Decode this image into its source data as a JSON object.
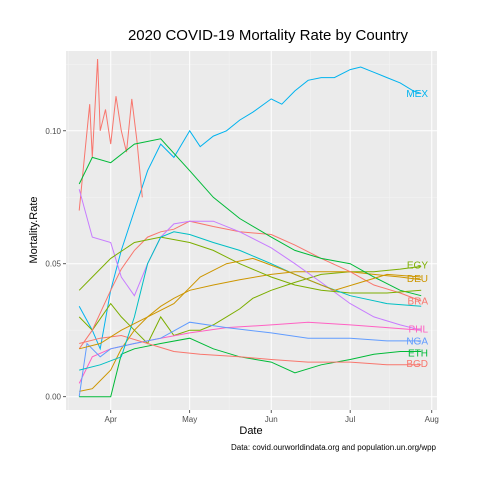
{
  "chart_data": {
    "type": "line",
    "title": "2020 COVID-19 Mortality Rate by Country",
    "xlabel": "Date",
    "ylabel": "Mortality.Rate",
    "caption": "Data: covid.ourworldindata.org and population.un.org/wpp",
    "x_ticks": [
      "Apr",
      "May",
      "Jun",
      "Jul",
      "Aug"
    ],
    "y_ticks": [
      "0.00",
      "0.05",
      "0.10"
    ],
    "xlim": [
      "2020-03-15",
      "2020-08-03"
    ],
    "ylim": [
      -0.005,
      0.13
    ],
    "grid": true,
    "panel_background": "#ebebeb",
    "legend": "none",
    "series": [
      {
        "name": "MEX",
        "color": "#00b3ef",
        "points": [
          [
            "2020-03-20",
            0.034
          ],
          [
            "2020-03-25",
            0.025
          ],
          [
            "2020-03-28",
            0.018
          ],
          [
            "2020-04-01",
            0.04
          ],
          [
            "2020-04-05",
            0.055
          ],
          [
            "2020-04-10",
            0.07
          ],
          [
            "2020-04-15",
            0.085
          ],
          [
            "2020-04-20",
            0.095
          ],
          [
            "2020-04-25",
            0.09
          ],
          [
            "2020-05-01",
            0.1
          ],
          [
            "2020-05-05",
            0.094
          ],
          [
            "2020-05-10",
            0.098
          ],
          [
            "2020-05-15",
            0.1
          ],
          [
            "2020-05-20",
            0.104
          ],
          [
            "2020-05-25",
            0.107
          ],
          [
            "2020-06-01",
            0.112
          ],
          [
            "2020-06-05",
            0.11
          ],
          [
            "2020-06-10",
            0.115
          ],
          [
            "2020-06-15",
            0.119
          ],
          [
            "2020-06-20",
            0.12
          ],
          [
            "2020-06-25",
            0.12
          ],
          [
            "2020-07-01",
            0.123
          ],
          [
            "2020-07-05",
            0.124
          ],
          [
            "2020-07-10",
            0.122
          ],
          [
            "2020-07-15",
            0.12
          ],
          [
            "2020-07-20",
            0.118
          ],
          [
            "2020-07-25",
            0.115
          ],
          [
            "2020-07-28",
            0.114
          ]
        ]
      },
      {
        "name": "EGY",
        "color": "#7cae00",
        "points": [
          [
            "2020-03-20",
            0.03
          ],
          [
            "2020-03-25",
            0.025
          ],
          [
            "2020-04-01",
            0.035
          ],
          [
            "2020-04-05",
            0.03
          ],
          [
            "2020-04-10",
            0.025
          ],
          [
            "2020-04-15",
            0.02
          ],
          [
            "2020-04-20",
            0.03
          ],
          [
            "2020-04-25",
            0.023
          ],
          [
            "2020-05-01",
            0.025
          ],
          [
            "2020-05-05",
            0.025
          ],
          [
            "2020-05-10",
            0.027
          ],
          [
            "2020-05-15",
            0.03
          ],
          [
            "2020-05-20",
            0.033
          ],
          [
            "2020-05-25",
            0.037
          ],
          [
            "2020-06-01",
            0.04
          ],
          [
            "2020-06-10",
            0.043
          ],
          [
            "2020-06-20",
            0.046
          ],
          [
            "2020-07-01",
            0.047
          ],
          [
            "2020-07-10",
            0.047
          ],
          [
            "2020-07-20",
            0.048
          ],
          [
            "2020-07-28",
            0.049
          ]
        ]
      },
      {
        "name": "DEU",
        "color": "#cd9600",
        "points": [
          [
            "2020-03-20",
            0.002
          ],
          [
            "2020-03-25",
            0.003
          ],
          [
            "2020-04-01",
            0.01
          ],
          [
            "2020-04-05",
            0.018
          ],
          [
            "2020-04-10",
            0.025
          ],
          [
            "2020-04-15",
            0.03
          ],
          [
            "2020-04-20",
            0.034
          ],
          [
            "2020-04-25",
            0.037
          ],
          [
            "2020-05-01",
            0.04
          ],
          [
            "2020-05-10",
            0.042
          ],
          [
            "2020-05-20",
            0.044
          ],
          [
            "2020-06-01",
            0.046
          ],
          [
            "2020-06-10",
            0.047
          ],
          [
            "2020-06-20",
            0.047
          ],
          [
            "2020-07-01",
            0.047
          ],
          [
            "2020-07-10",
            0.046
          ],
          [
            "2020-07-20",
            0.045
          ],
          [
            "2020-07-28",
            0.044
          ]
        ]
      },
      {
        "name": "BRA",
        "color": "#f8766d",
        "points": [
          [
            "2020-03-20",
            0.018
          ],
          [
            "2020-03-25",
            0.025
          ],
          [
            "2020-04-01",
            0.04
          ],
          [
            "2020-04-05",
            0.048
          ],
          [
            "2020-04-10",
            0.055
          ],
          [
            "2020-04-15",
            0.06
          ],
          [
            "2020-04-20",
            0.062
          ],
          [
            "2020-04-25",
            0.063
          ],
          [
            "2020-05-01",
            0.066
          ],
          [
            "2020-05-10",
            0.064
          ],
          [
            "2020-05-20",
            0.062
          ],
          [
            "2020-06-01",
            0.061
          ],
          [
            "2020-06-10",
            0.057
          ],
          [
            "2020-06-20",
            0.052
          ],
          [
            "2020-07-01",
            0.047
          ],
          [
            "2020-07-10",
            0.042
          ],
          [
            "2020-07-20",
            0.039
          ],
          [
            "2020-07-28",
            0.036
          ]
        ]
      },
      {
        "name": "PHL",
        "color": "#ff61c3",
        "points": [
          [
            "2020-03-20",
            0.005
          ],
          [
            "2020-03-25",
            0.015
          ],
          [
            "2020-04-01",
            0.018
          ],
          [
            "2020-04-10",
            0.02
          ],
          [
            "2020-04-20",
            0.022
          ],
          [
            "2020-05-01",
            0.024
          ],
          [
            "2020-05-15",
            0.026
          ],
          [
            "2020-06-01",
            0.027
          ],
          [
            "2020-06-15",
            0.028
          ],
          [
            "2020-07-01",
            0.027
          ],
          [
            "2020-07-15",
            0.026
          ],
          [
            "2020-07-28",
            0.025
          ]
        ]
      },
      {
        "name": "NGA",
        "color": "#619cff",
        "points": [
          [
            "2020-03-20",
            0.0
          ],
          [
            "2020-03-23",
            0.02
          ],
          [
            "2020-03-28",
            0.015
          ],
          [
            "2020-04-01",
            0.018
          ],
          [
            "2020-04-10",
            0.02
          ],
          [
            "2020-04-20",
            0.022
          ],
          [
            "2020-05-01",
            0.028
          ],
          [
            "2020-05-15",
            0.026
          ],
          [
            "2020-06-01",
            0.024
          ],
          [
            "2020-06-15",
            0.022
          ],
          [
            "2020-07-01",
            0.022
          ],
          [
            "2020-07-15",
            0.021
          ],
          [
            "2020-07-28",
            0.021
          ]
        ]
      },
      {
        "name": "ETH",
        "color": "#00ba38",
        "points": [
          [
            "2020-03-20",
            0.0
          ],
          [
            "2020-04-01",
            0.0
          ],
          [
            "2020-04-05",
            0.016
          ],
          [
            "2020-04-10",
            0.018
          ],
          [
            "2020-04-20",
            0.02
          ],
          [
            "2020-05-01",
            0.022
          ],
          [
            "2020-05-10",
            0.018
          ],
          [
            "2020-05-20",
            0.015
          ],
          [
            "2020-06-01",
            0.013
          ],
          [
            "2020-06-10",
            0.009
          ],
          [
            "2020-06-20",
            0.012
          ],
          [
            "2020-07-01",
            0.014
          ],
          [
            "2020-07-10",
            0.016
          ],
          [
            "2020-07-20",
            0.017
          ],
          [
            "2020-07-28",
            0.017
          ]
        ]
      },
      {
        "name": "BGD",
        "color": "#f8766d",
        "points": [
          [
            "2020-03-20",
            0.02
          ],
          [
            "2020-03-28",
            0.022
          ],
          [
            "2020-04-05",
            0.023
          ],
          [
            "2020-04-15",
            0.02
          ],
          [
            "2020-04-25",
            0.017
          ],
          [
            "2020-05-05",
            0.016
          ],
          [
            "2020-05-20",
            0.015
          ],
          [
            "2020-06-01",
            0.014
          ],
          [
            "2020-06-15",
            0.013
          ],
          [
            "2020-07-01",
            0.013
          ],
          [
            "2020-07-15",
            0.012
          ],
          [
            "2020-07-28",
            0.012
          ]
        ]
      },
      {
        "name": "",
        "color": "#f8766d",
        "points": [
          [
            "2020-03-20",
            0.07
          ],
          [
            "2020-03-22",
            0.09
          ],
          [
            "2020-03-24",
            0.11
          ],
          [
            "2020-03-25",
            0.09
          ],
          [
            "2020-03-27",
            0.127
          ],
          [
            "2020-03-28",
            0.1
          ],
          [
            "2020-03-30",
            0.108
          ],
          [
            "2020-04-01",
            0.095
          ],
          [
            "2020-04-03",
            0.113
          ],
          [
            "2020-04-05",
            0.1
          ],
          [
            "2020-04-07",
            0.092
          ],
          [
            "2020-04-09",
            0.112
          ],
          [
            "2020-04-11",
            0.096
          ],
          [
            "2020-04-13",
            0.075
          ]
        ]
      },
      {
        "name": "",
        "color": "#00ba38",
        "points": [
          [
            "2020-03-20",
            0.08
          ],
          [
            "2020-03-25",
            0.09
          ],
          [
            "2020-04-01",
            0.088
          ],
          [
            "2020-04-10",
            0.095
          ],
          [
            "2020-04-20",
            0.097
          ],
          [
            "2020-05-01",
            0.085
          ],
          [
            "2020-05-10",
            0.075
          ],
          [
            "2020-05-20",
            0.067
          ],
          [
            "2020-06-01",
            0.06
          ],
          [
            "2020-06-10",
            0.055
          ],
          [
            "2020-06-20",
            0.052
          ],
          [
            "2020-07-01",
            0.05
          ],
          [
            "2020-07-10",
            0.045
          ],
          [
            "2020-07-20",
            0.04
          ],
          [
            "2020-07-28",
            0.038
          ]
        ]
      },
      {
        "name": "",
        "color": "#c77cff",
        "points": [
          [
            "2020-03-20",
            0.078
          ],
          [
            "2020-03-25",
            0.06
          ],
          [
            "2020-04-01",
            0.058
          ],
          [
            "2020-04-05",
            0.045
          ],
          [
            "2020-04-10",
            0.038
          ],
          [
            "2020-04-15",
            0.05
          ],
          [
            "2020-04-20",
            0.06
          ],
          [
            "2020-04-25",
            0.065
          ],
          [
            "2020-05-01",
            0.066
          ],
          [
            "2020-05-10",
            0.066
          ],
          [
            "2020-05-20",
            0.062
          ],
          [
            "2020-06-01",
            0.056
          ],
          [
            "2020-06-10",
            0.05
          ],
          [
            "2020-06-20",
            0.043
          ],
          [
            "2020-07-01",
            0.035
          ],
          [
            "2020-07-10",
            0.03
          ],
          [
            "2020-07-20",
            0.027
          ],
          [
            "2020-07-28",
            0.025
          ]
        ]
      },
      {
        "name": "",
        "color": "#7cae00",
        "points": [
          [
            "2020-03-20",
            0.04
          ],
          [
            "2020-03-25",
            0.045
          ],
          [
            "2020-04-01",
            0.052
          ],
          [
            "2020-04-10",
            0.058
          ],
          [
            "2020-04-20",
            0.06
          ],
          [
            "2020-05-01",
            0.058
          ],
          [
            "2020-05-10",
            0.055
          ],
          [
            "2020-05-20",
            0.05
          ],
          [
            "2020-06-01",
            0.045
          ],
          [
            "2020-06-10",
            0.042
          ],
          [
            "2020-06-20",
            0.04
          ],
          [
            "2020-07-01",
            0.039
          ],
          [
            "2020-07-15",
            0.039
          ],
          [
            "2020-07-28",
            0.04
          ]
        ]
      },
      {
        "name": "",
        "color": "#00bfc4",
        "points": [
          [
            "2020-03-20",
            0.01
          ],
          [
            "2020-03-28",
            0.012
          ],
          [
            "2020-04-05",
            0.015
          ],
          [
            "2020-04-10",
            0.03
          ],
          [
            "2020-04-15",
            0.05
          ],
          [
            "2020-04-20",
            0.06
          ],
          [
            "2020-04-25",
            0.062
          ],
          [
            "2020-05-01",
            0.061
          ],
          [
            "2020-05-10",
            0.058
          ],
          [
            "2020-05-20",
            0.055
          ],
          [
            "2020-06-01",
            0.05
          ],
          [
            "2020-06-10",
            0.046
          ],
          [
            "2020-06-20",
            0.042
          ],
          [
            "2020-07-01",
            0.038
          ],
          [
            "2020-07-15",
            0.035
          ],
          [
            "2020-07-28",
            0.034
          ]
        ]
      },
      {
        "name": "",
        "color": "#cd9600",
        "points": [
          [
            "2020-03-20",
            0.018
          ],
          [
            "2020-03-28",
            0.02
          ],
          [
            "2020-04-05",
            0.025
          ],
          [
            "2020-04-15",
            0.03
          ],
          [
            "2020-04-25",
            0.035
          ],
          [
            "2020-05-05",
            0.045
          ],
          [
            "2020-05-15",
            0.05
          ],
          [
            "2020-05-25",
            0.052
          ],
          [
            "2020-06-05",
            0.048
          ],
          [
            "2020-06-15",
            0.044
          ],
          [
            "2020-06-25",
            0.04
          ],
          [
            "2020-07-05",
            0.043
          ],
          [
            "2020-07-15",
            0.046
          ],
          [
            "2020-07-28",
            0.045
          ]
        ]
      }
    ],
    "end_labels": [
      {
        "name": "MEX",
        "color": "#00b3ef",
        "y": 0.114
      },
      {
        "name": "EGY",
        "color": "#7cae00",
        "y": 0.0495
      },
      {
        "name": "DEU",
        "color": "#cd9600",
        "y": 0.0445
      },
      {
        "name": "BRA",
        "color": "#f8766d",
        "y": 0.036
      },
      {
        "name": "PHL",
        "color": "#ff61c3",
        "y": 0.0255
      },
      {
        "name": "NGA",
        "color": "#619cff",
        "y": 0.021
      },
      {
        "name": "ETH",
        "color": "#00ba38",
        "y": 0.0165
      },
      {
        "name": "BGD",
        "color": "#f8766d",
        "y": 0.0125
      }
    ]
  }
}
